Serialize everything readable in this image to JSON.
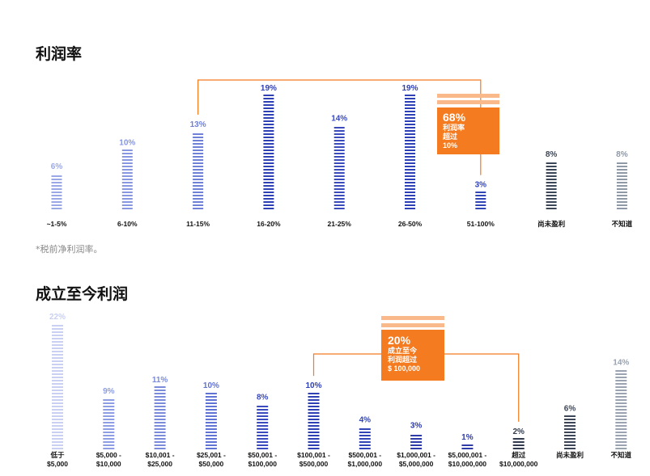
{
  "section1": {
    "title": "利润率",
    "footnote": "*税前净利润率。",
    "callout": {
      "pct": "68%",
      "line1": "利润率",
      "line2": "超过",
      "line3": "10%"
    }
  },
  "section2": {
    "title": "成立至今利润",
    "callout": {
      "pct": "20%",
      "line1": "成立至今",
      "line2": "利润超过",
      "line3": "$ 100,000"
    }
  },
  "colors": {
    "accent": "#f47b20",
    "accent_light": "#f9b98a"
  },
  "chart_data": [
    {
      "type": "bar",
      "title": "利润率",
      "categories": [
        "~1-5%",
        "6-10%",
        "11-15%",
        "16-20%",
        "21-25%",
        "26-50%",
        "51-100%",
        "尚未盈利",
        "不知道"
      ],
      "values": [
        6,
        10,
        13,
        19,
        14,
        19,
        3,
        8,
        8
      ],
      "value_labels": [
        "6%",
        "10%",
        "13%",
        "19%",
        "14%",
        "19%",
        "3%",
        "8%",
        "8%"
      ],
      "colors": [
        "#9aa9e6",
        "#8797e0",
        "#6f80d6",
        "#2f3fb4",
        "#3b4bbd",
        "#2f3fb4",
        "#3145b6",
        "#3d4656",
        "#8e98a6"
      ],
      "ylim": [
        0,
        19
      ],
      "bracket": {
        "from_category": "11-15%",
        "to_category": "51-100%"
      }
    },
    {
      "type": "bar",
      "title": "成立至今利润",
      "categories": [
        "低于\n$5,000",
        "$5,000 -\n$10,000",
        "$10,001 -\n$25,000",
        "$25,001 -\n$50,000",
        "$50,001 -\n$100,000",
        "$100,001 -\n$500,000",
        "$500,001 -\n$1,000,000",
        "$1,000,001 -\n$5,000,000",
        "$5,000,001 -\n$10,000,000",
        "超过\n$10,000,000",
        "尚未盈利",
        "不知道"
      ],
      "values": [
        22,
        9,
        11,
        10,
        8,
        10,
        4,
        3,
        1,
        2,
        6,
        14
      ],
      "value_labels": [
        "22%",
        "9%",
        "11%",
        "10%",
        "8%",
        "10%",
        "4%",
        "3%",
        "1%",
        "2%",
        "6%",
        "14%"
      ],
      "colors": [
        "#c9d0f2",
        "#8f9de2",
        "#7a8bdc",
        "#6072d2",
        "#3b4bbd",
        "#2f3fb4",
        "#3145b6",
        "#2e3ba8",
        "#2e3ba8",
        "#333c4e",
        "#3d4656",
        "#9aa3b0"
      ],
      "ylim": [
        0,
        22
      ],
      "bracket": {
        "from_category": "$100,001 -\n$500,000",
        "to_category": "超过\n$10,000,000"
      }
    }
  ]
}
